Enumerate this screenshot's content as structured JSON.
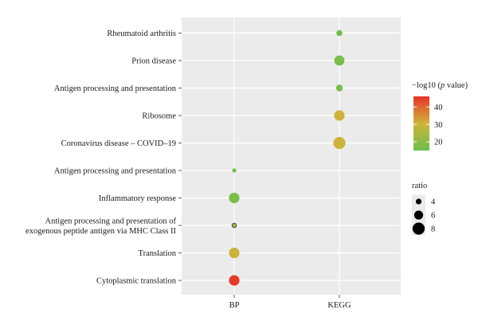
{
  "chart_data": {
    "type": "scatter",
    "x_categories": [
      "BP",
      "KEGG"
    ],
    "y_categories": [
      "Rheumatoid arthritis",
      "Prion disease",
      "Antigen processing and presentation",
      "Ribosome",
      "Coronavirus disease – COVID–19",
      "Antigen processing and presentation",
      "Inflammatory response",
      "Antigen processing and presentation of\nexogenous peptide antigen via MHC Class II",
      "Translation",
      "Cytoplasmic translation"
    ],
    "points": [
      {
        "x": "KEGG",
        "y_index": 0,
        "ratio": 4.2,
        "neg_log10_p": 16
      },
      {
        "x": "KEGG",
        "y_index": 1,
        "ratio": 6.8,
        "neg_log10_p": 17
      },
      {
        "x": "KEGG",
        "y_index": 2,
        "ratio": 4.6,
        "neg_log10_p": 17
      },
      {
        "x": "KEGG",
        "y_index": 3,
        "ratio": 7.0,
        "neg_log10_p": 30
      },
      {
        "x": "KEGG",
        "y_index": 4,
        "ratio": 8.0,
        "neg_log10_p": 30
      },
      {
        "x": "BP",
        "y_index": 5,
        "ratio": 3.0,
        "neg_log10_p": 16
      },
      {
        "x": "BP",
        "y_index": 6,
        "ratio": 7.0,
        "neg_log10_p": 17
      },
      {
        "x": "BP",
        "y_index": 7,
        "ratio": 3.2,
        "neg_log10_p": 22
      },
      {
        "x": "BP",
        "y_index": 8,
        "ratio": 7.0,
        "neg_log10_p": 30
      },
      {
        "x": "BP",
        "y_index": 9,
        "ratio": 7.0,
        "neg_log10_p": 45
      }
    ],
    "color_legend": {
      "title_prefix": "−log10 (",
      "title_italic": "p",
      "title_suffix": " value)",
      "ticks": [
        20,
        30,
        40
      ],
      "range": [
        15,
        46
      ],
      "colors": [
        "#6cc04a",
        "#cfb33a",
        "#e8332a"
      ]
    },
    "size_legend": {
      "title": "ratio",
      "ticks": [
        4,
        6,
        8
      ]
    },
    "grid": true,
    "legend_placement": "right"
  }
}
